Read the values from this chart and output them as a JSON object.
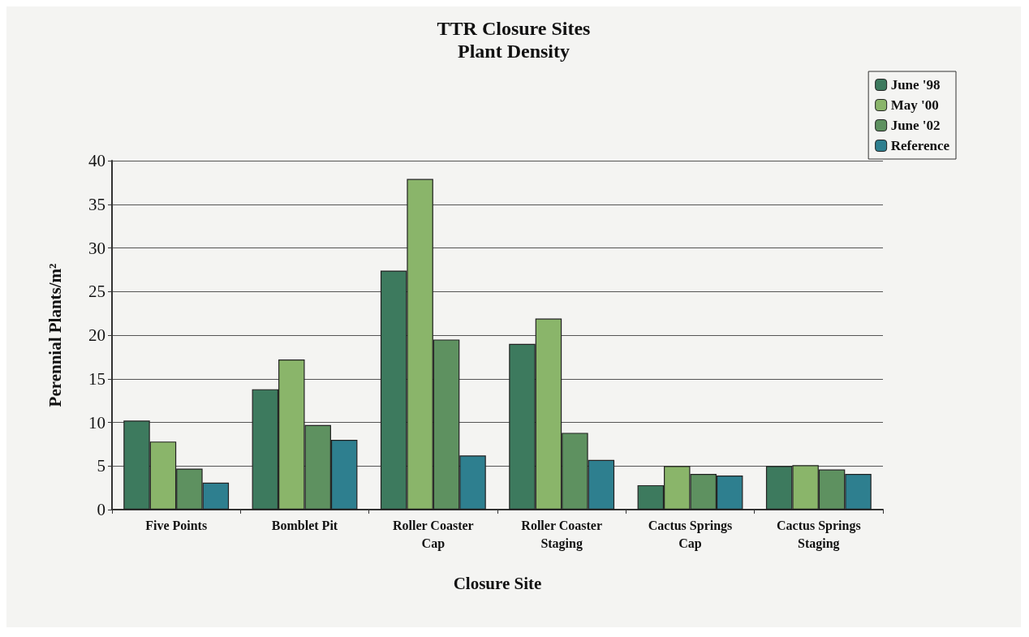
{
  "chart_data": {
    "type": "bar",
    "title": "TTR Closure Sites",
    "subtitle": "Plant Density",
    "xlabel": "Closure Site",
    "ylabel": "Perennial Plants/m²",
    "categories": [
      "Five Points",
      "Bomblet Pit",
      "Roller Coaster\nCap",
      "Roller Coaster\nStaging",
      "Cactus Springs\nCap",
      "Cactus Springs\nStaging"
    ],
    "series": [
      {
        "name": "June '98",
        "color": "#3d7a5e",
        "values": [
          10.2,
          13.8,
          27.4,
          19.0,
          2.8,
          5.0
        ]
      },
      {
        "name": "May '00",
        "color": "#8ab56a",
        "values": [
          7.8,
          17.2,
          37.9,
          21.9,
          5.0,
          5.1
        ]
      },
      {
        "name": "June '02",
        "color": "#5e9160",
        "values": [
          4.7,
          9.7,
          19.5,
          8.8,
          4.1,
          4.6
        ]
      },
      {
        "name": "Reference",
        "color": "#2e7f8f",
        "values": [
          3.1,
          8.0,
          6.2,
          5.7,
          3.9,
          4.1
        ]
      }
    ],
    "ylim": [
      0,
      40
    ],
    "yticks": [
      0,
      5,
      10,
      15,
      20,
      25,
      30,
      35,
      40
    ],
    "grid": "y",
    "legend": "top right"
  }
}
